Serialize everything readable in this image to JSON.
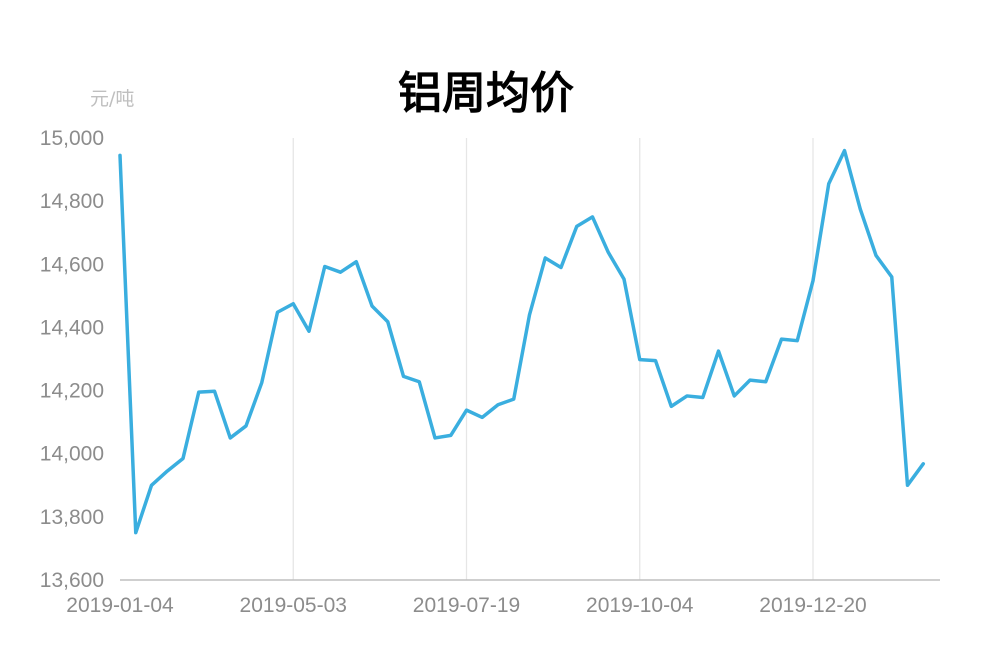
{
  "chart_data": {
    "type": "line",
    "title": "铝周均价",
    "ylabel": "元/吨",
    "xlabel": "",
    "ylim": [
      13600,
      15000
    ],
    "yticks": [
      13600,
      13800,
      14000,
      14200,
      14400,
      14600,
      14800,
      15000
    ],
    "ytick_labels": [
      "13,600",
      "13,800",
      "14,000",
      "14,200",
      "14,400",
      "14,600",
      "14,800",
      "15,000"
    ],
    "xtick_labels": [
      "2019-01-04",
      "2019-05-03",
      "2019-07-19",
      "2019-10-04",
      "2019-12-20"
    ],
    "xtick_indices": [
      0,
      11,
      22,
      33,
      44
    ],
    "grid": "vertical",
    "legend": "none",
    "series": [
      {
        "color": "#3aaedf",
        "values": [
          14945,
          13750,
          13900,
          13945,
          13985,
          14195,
          14198,
          14050,
          14088,
          14225,
          14448,
          14475,
          14388,
          14593,
          14575,
          14608,
          14468,
          14418,
          14245,
          14228,
          14050,
          14058,
          14138,
          14115,
          14155,
          14173,
          14440,
          14620,
          14590,
          14720,
          14750,
          14638,
          14553,
          14298,
          14295,
          14150,
          14183,
          14178,
          14325,
          14183,
          14233,
          14228,
          14363,
          14358,
          14548,
          14855,
          14960,
          14775,
          14628,
          14560,
          13900,
          13968
        ]
      }
    ]
  }
}
